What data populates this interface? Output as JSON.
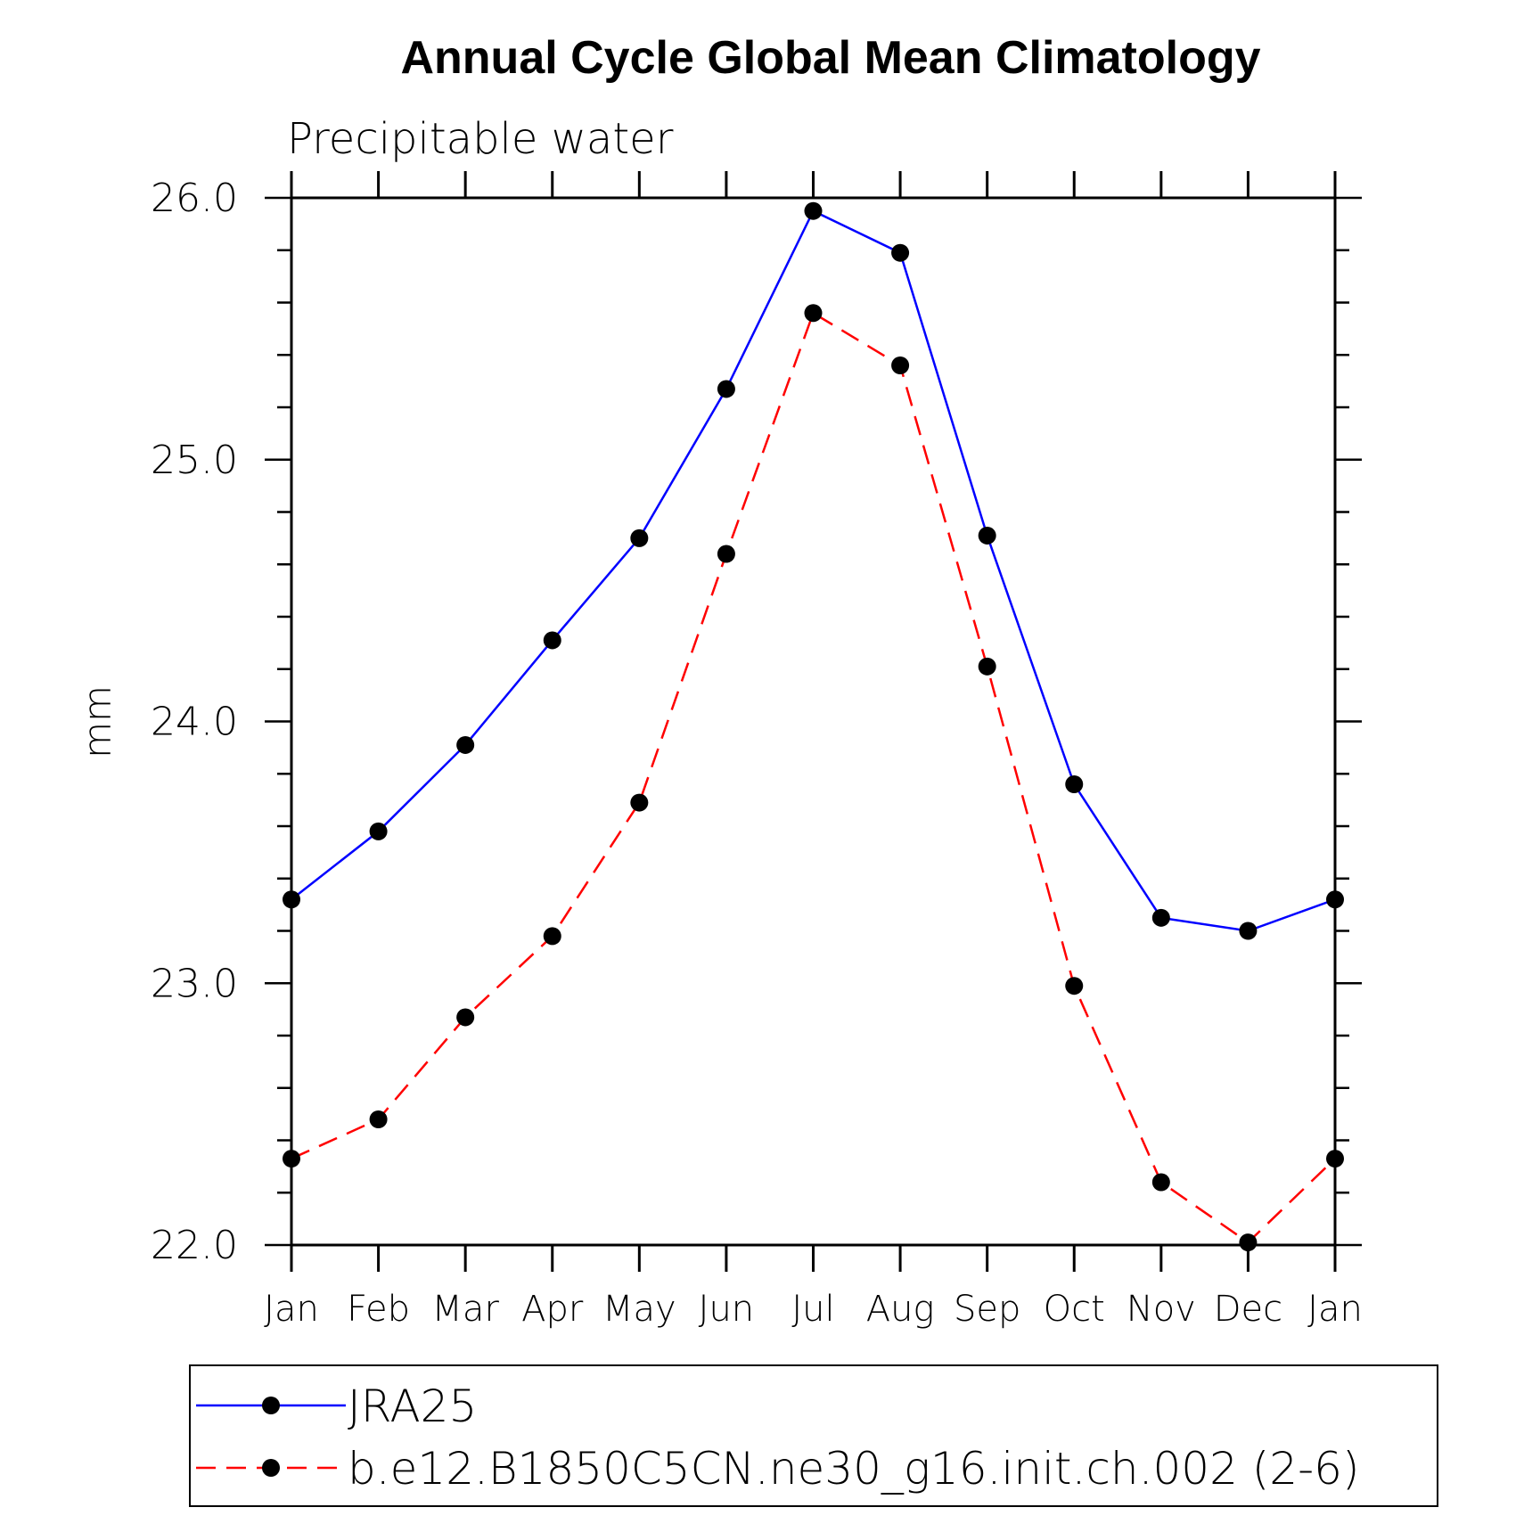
{
  "chart_data": {
    "type": "line",
    "title": "Annual Cycle Global Mean Climatology",
    "subtitle": "Precipitable water",
    "ylabel": "mm",
    "xlabel": "",
    "categories": [
      "Jan",
      "Feb",
      "Mar",
      "Apr",
      "May",
      "Jun",
      "Jul",
      "Aug",
      "Sep",
      "Oct",
      "Nov",
      "Dec",
      "Jan"
    ],
    "ylim": [
      22.0,
      26.0
    ],
    "yticks": [
      "22.0",
      "23.0",
      "24.0",
      "25.0",
      "26.0"
    ],
    "grid": false,
    "legend_position": "bottom",
    "series": [
      {
        "name": "JRA25",
        "color": "#0000ff",
        "dash": "solid",
        "marker": "filled-circle",
        "values": [
          23.32,
          23.58,
          23.91,
          24.31,
          24.7,
          25.27,
          25.95,
          25.79,
          24.71,
          23.76,
          23.25,
          23.2,
          23.32
        ]
      },
      {
        "name": "b.e12.B1850C5CN.ne30_g16.init.ch.002 (2-6)",
        "color": "#ff0000",
        "dash": "dashed",
        "marker": "filled-circle",
        "values": [
          22.33,
          22.48,
          22.87,
          23.18,
          23.69,
          24.64,
          25.56,
          25.36,
          24.21,
          22.99,
          22.24,
          22.01,
          22.33
        ]
      }
    ]
  }
}
